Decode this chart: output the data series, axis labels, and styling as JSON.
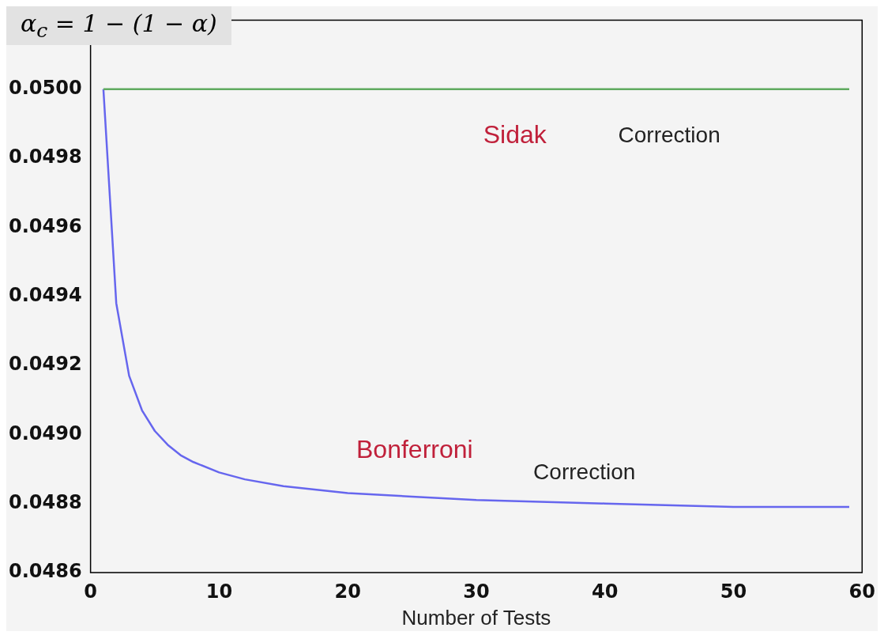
{
  "chart_data": {
    "type": "line",
    "xlabel": "Number of Tests",
    "xlim": [
      0,
      60
    ],
    "xticks": [
      0,
      10,
      20,
      30,
      40,
      50,
      60
    ],
    "ylim": [
      0.0486,
      0.0502
    ],
    "yticks": [
      {
        "value": 0.0486,
        "label": "0.0486"
      },
      {
        "value": 0.0488,
        "label": "0.0488"
      },
      {
        "value": 0.049,
        "label": "0.0490"
      },
      {
        "value": 0.0492,
        "label": "0.0492"
      },
      {
        "value": 0.0494,
        "label": "0.0494"
      },
      {
        "value": 0.0496,
        "label": "0.0496"
      },
      {
        "value": 0.0498,
        "label": "0.0498"
      },
      {
        "value": 0.05,
        "label": "0.0500"
      },
      {
        "value": 0.0502,
        "label": null
      }
    ],
    "grid": false,
    "legend": false,
    "marker": "none",
    "line_style": "solid",
    "series": [
      {
        "color": "#5faa5f",
        "x": [
          1,
          59
        ],
        "values": [
          0.05,
          0.05
        ]
      },
      {
        "color": "#6666ee",
        "x": [
          1,
          2,
          3,
          4,
          5,
          6,
          7,
          8,
          10,
          12,
          15,
          20,
          25,
          30,
          40,
          50,
          59
        ],
        "values": [
          0.05,
          0.04938,
          0.04917,
          0.04907,
          0.04901,
          0.04897,
          0.04894,
          0.04892,
          0.04889,
          0.04887,
          0.04885,
          0.04883,
          0.04882,
          0.04881,
          0.0488,
          0.04879,
          0.04879
        ]
      }
    ],
    "annotations": [
      "α$_{c}$ = 1 − (1 − α)",
      "Sidak",
      "Correction",
      "Bonferroni",
      "Correction"
    ]
  }
}
